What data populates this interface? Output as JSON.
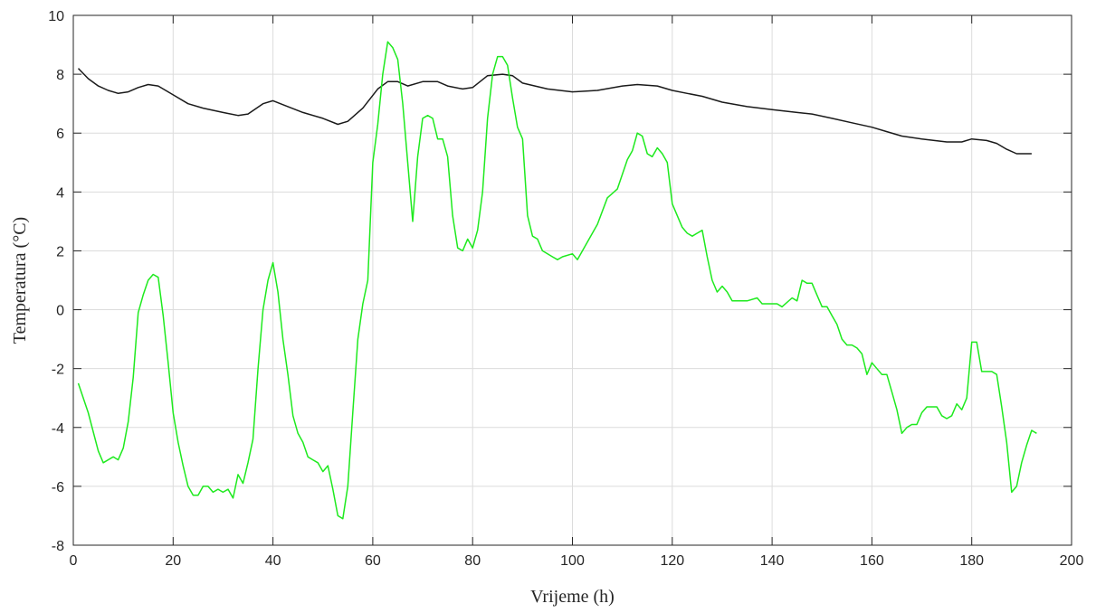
{
  "chart_data": {
    "type": "line",
    "title": "",
    "xlabel": "Vrijeme (h)",
    "ylabel": "Temperatura (°C)",
    "xlim": [
      0,
      200
    ],
    "ylim": [
      -8,
      10
    ],
    "xticks": [
      0,
      20,
      40,
      60,
      80,
      100,
      120,
      140,
      160,
      180,
      200
    ],
    "yticks": [
      -8,
      -6,
      -4,
      -2,
      0,
      2,
      4,
      6,
      8,
      10
    ],
    "grid": true,
    "box": true,
    "series": [
      {
        "color": "#1a1a1a",
        "points": [
          [
            1,
            8.2
          ],
          [
            3,
            7.85
          ],
          [
            5,
            7.6
          ],
          [
            7,
            7.45
          ],
          [
            9,
            7.35
          ],
          [
            11,
            7.4
          ],
          [
            13,
            7.55
          ],
          [
            15,
            7.65
          ],
          [
            17,
            7.6
          ],
          [
            20,
            7.3
          ],
          [
            23,
            7.0
          ],
          [
            26,
            6.85
          ],
          [
            30,
            6.7
          ],
          [
            33,
            6.6
          ],
          [
            35,
            6.65
          ],
          [
            38,
            7.0
          ],
          [
            40,
            7.1
          ],
          [
            43,
            6.9
          ],
          [
            46,
            6.7
          ],
          [
            50,
            6.5
          ],
          [
            53,
            6.3
          ],
          [
            55,
            6.4
          ],
          [
            58,
            6.85
          ],
          [
            61,
            7.5
          ],
          [
            63,
            7.75
          ],
          [
            65,
            7.75
          ],
          [
            67,
            7.6
          ],
          [
            70,
            7.75
          ],
          [
            73,
            7.75
          ],
          [
            75,
            7.6
          ],
          [
            78,
            7.5
          ],
          [
            80,
            7.55
          ],
          [
            83,
            7.95
          ],
          [
            86,
            8.0
          ],
          [
            88,
            7.95
          ],
          [
            90,
            7.7
          ],
          [
            95,
            7.5
          ],
          [
            100,
            7.4
          ],
          [
            105,
            7.45
          ],
          [
            110,
            7.6
          ],
          [
            113,
            7.65
          ],
          [
            117,
            7.6
          ],
          [
            120,
            7.45
          ],
          [
            123,
            7.35
          ],
          [
            126,
            7.25
          ],
          [
            130,
            7.05
          ],
          [
            135,
            6.9
          ],
          [
            140,
            6.8
          ],
          [
            145,
            6.7
          ],
          [
            148,
            6.65
          ],
          [
            152,
            6.5
          ],
          [
            156,
            6.35
          ],
          [
            160,
            6.2
          ],
          [
            163,
            6.05
          ],
          [
            166,
            5.9
          ],
          [
            170,
            5.8
          ],
          [
            175,
            5.7
          ],
          [
            178,
            5.7
          ],
          [
            180,
            5.8
          ],
          [
            183,
            5.75
          ],
          [
            185,
            5.65
          ],
          [
            187,
            5.45
          ],
          [
            189,
            5.3
          ],
          [
            191,
            5.3
          ],
          [
            192,
            5.3
          ]
        ]
      },
      {
        "color": "#1eea1e",
        "points": [
          [
            1,
            -2.5
          ],
          [
            3,
            -3.5
          ],
          [
            5,
            -4.8
          ],
          [
            6,
            -5.2
          ],
          [
            8,
            -5.0
          ],
          [
            9,
            -5.1
          ],
          [
            10,
            -4.7
          ],
          [
            11,
            -3.8
          ],
          [
            12,
            -2.3
          ],
          [
            13,
            -0.1
          ],
          [
            14,
            0.5
          ],
          [
            15,
            1.0
          ],
          [
            16,
            1.2
          ],
          [
            17,
            1.1
          ],
          [
            18,
            -0.2
          ],
          [
            19,
            -1.8
          ],
          [
            20,
            -3.5
          ],
          [
            21,
            -4.5
          ],
          [
            22,
            -5.3
          ],
          [
            23,
            -6.0
          ],
          [
            24,
            -6.3
          ],
          [
            25,
            -6.3
          ],
          [
            26,
            -6.0
          ],
          [
            27,
            -6.0
          ],
          [
            28,
            -6.2
          ],
          [
            29,
            -6.1
          ],
          [
            30,
            -6.2
          ],
          [
            31,
            -6.1
          ],
          [
            32,
            -6.4
          ],
          [
            33,
            -5.6
          ],
          [
            34,
            -5.9
          ],
          [
            35,
            -5.2
          ],
          [
            36,
            -4.4
          ],
          [
            37,
            -2.0
          ],
          [
            38,
            0.0
          ],
          [
            39,
            1.0
          ],
          [
            40,
            1.6
          ],
          [
            41,
            0.6
          ],
          [
            42,
            -1.0
          ],
          [
            43,
            -2.2
          ],
          [
            44,
            -3.6
          ],
          [
            45,
            -4.2
          ],
          [
            46,
            -4.5
          ],
          [
            47,
            -5.0
          ],
          [
            48,
            -5.1
          ],
          [
            49,
            -5.2
          ],
          [
            50,
            -5.5
          ],
          [
            51,
            -5.3
          ],
          [
            52,
            -6.1
          ],
          [
            53,
            -7.0
          ],
          [
            54,
            -7.1
          ],
          [
            55,
            -6.0
          ],
          [
            56,
            -3.5
          ],
          [
            57,
            -1.0
          ],
          [
            58,
            0.2
          ],
          [
            59,
            1.0
          ],
          [
            60,
            5.0
          ],
          [
            61,
            6.3
          ],
          [
            62,
            8.0
          ],
          [
            63,
            9.1
          ],
          [
            64,
            8.9
          ],
          [
            65,
            8.5
          ],
          [
            66,
            7.0
          ],
          [
            67,
            5.0
          ],
          [
            68,
            3.0
          ],
          [
            69,
            5.2
          ],
          [
            70,
            6.5
          ],
          [
            71,
            6.6
          ],
          [
            72,
            6.5
          ],
          [
            73,
            5.8
          ],
          [
            74,
            5.8
          ],
          [
            75,
            5.2
          ],
          [
            76,
            3.2
          ],
          [
            77,
            2.1
          ],
          [
            78,
            2.0
          ],
          [
            79,
            2.4
          ],
          [
            80,
            2.1
          ],
          [
            81,
            2.7
          ],
          [
            82,
            4.0
          ],
          [
            83,
            6.5
          ],
          [
            84,
            8.0
          ],
          [
            85,
            8.6
          ],
          [
            86,
            8.6
          ],
          [
            87,
            8.3
          ],
          [
            88,
            7.2
          ],
          [
            89,
            6.2
          ],
          [
            90,
            5.8
          ],
          [
            91,
            3.2
          ],
          [
            92,
            2.5
          ],
          [
            93,
            2.4
          ],
          [
            94,
            2.0
          ],
          [
            96,
            1.8
          ],
          [
            97,
            1.7
          ],
          [
            98,
            1.8
          ],
          [
            100,
            1.9
          ],
          [
            101,
            1.7
          ],
          [
            103,
            2.3
          ],
          [
            105,
            2.9
          ],
          [
            107,
            3.8
          ],
          [
            109,
            4.1
          ],
          [
            111,
            5.1
          ],
          [
            112,
            5.4
          ],
          [
            113,
            6.0
          ],
          [
            114,
            5.9
          ],
          [
            115,
            5.3
          ],
          [
            116,
            5.2
          ],
          [
            117,
            5.5
          ],
          [
            118,
            5.3
          ],
          [
            119,
            5.0
          ],
          [
            120,
            3.6
          ],
          [
            121,
            3.2
          ],
          [
            122,
            2.8
          ],
          [
            123,
            2.6
          ],
          [
            124,
            2.5
          ],
          [
            125,
            2.6
          ],
          [
            126,
            2.7
          ],
          [
            127,
            1.8
          ],
          [
            128,
            1.0
          ],
          [
            129,
            0.6
          ],
          [
            130,
            0.8
          ],
          [
            131,
            0.6
          ],
          [
            132,
            0.3
          ],
          [
            133,
            0.3
          ],
          [
            135,
            0.3
          ],
          [
            137,
            0.4
          ],
          [
            138,
            0.2
          ],
          [
            141,
            0.2
          ],
          [
            142,
            0.1
          ],
          [
            144,
            0.4
          ],
          [
            145,
            0.3
          ],
          [
            146,
            1.0
          ],
          [
            147,
            0.9
          ],
          [
            148,
            0.9
          ],
          [
            149,
            0.5
          ],
          [
            150,
            0.1
          ],
          [
            151,
            0.1
          ],
          [
            152,
            -0.2
          ],
          [
            153,
            -0.5
          ],
          [
            154,
            -1.0
          ],
          [
            155,
            -1.2
          ],
          [
            156,
            -1.2
          ],
          [
            157,
            -1.3
          ],
          [
            158,
            -1.5
          ],
          [
            159,
            -2.2
          ],
          [
            160,
            -1.8
          ],
          [
            161,
            -2.0
          ],
          [
            162,
            -2.2
          ],
          [
            163,
            -2.2
          ],
          [
            164,
            -2.8
          ],
          [
            165,
            -3.4
          ],
          [
            166,
            -4.2
          ],
          [
            167,
            -4.0
          ],
          [
            168,
            -3.9
          ],
          [
            169,
            -3.9
          ],
          [
            170,
            -3.5
          ],
          [
            171,
            -3.3
          ],
          [
            172,
            -3.3
          ],
          [
            173,
            -3.3
          ],
          [
            174,
            -3.6
          ],
          [
            175,
            -3.7
          ],
          [
            176,
            -3.6
          ],
          [
            177,
            -3.2
          ],
          [
            178,
            -3.4
          ],
          [
            179,
            -3.0
          ],
          [
            180,
            -1.1
          ],
          [
            181,
            -1.1
          ],
          [
            182,
            -2.1
          ],
          [
            183,
            -2.1
          ],
          [
            184,
            -2.1
          ],
          [
            185,
            -2.2
          ],
          [
            186,
            -3.3
          ],
          [
            187,
            -4.5
          ],
          [
            188,
            -6.2
          ],
          [
            189,
            -6.0
          ],
          [
            190,
            -5.2
          ],
          [
            191,
            -4.6
          ],
          [
            192,
            -4.1
          ],
          [
            193,
            -4.2
          ]
        ]
      }
    ]
  }
}
